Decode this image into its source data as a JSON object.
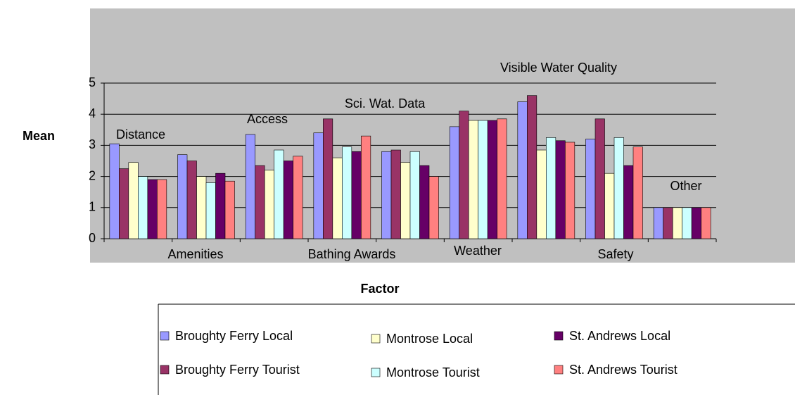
{
  "chart_data": {
    "type": "bar",
    "x_label": "Factor",
    "y_label": "Mean",
    "categories": [
      "Distance",
      "Amenities",
      "Access",
      "Bathing Awards",
      "Sci. Wat. Data",
      "Weather",
      "Visible Water Quality",
      "Safety",
      "Other"
    ],
    "series": [
      {
        "name": "Broughty Ferry Local",
        "color": "#9999ff",
        "values": [
          3.05,
          2.7,
          3.35,
          3.4,
          2.8,
          3.6,
          4.4,
          3.2,
          1
        ]
      },
      {
        "name": "Broughty Ferry Tourist",
        "color": "#993366",
        "values": [
          2.25,
          2.5,
          2.35,
          3.85,
          2.85,
          4.1,
          4.6,
          3.85,
          1
        ]
      },
      {
        "name": "Montrose Local",
        "color": "#ffffcc",
        "values": [
          2.45,
          2.0,
          2.2,
          2.6,
          2.45,
          3.8,
          2.85,
          2.1,
          1
        ]
      },
      {
        "name": "Montrose Tourist",
        "color": "#ccffff",
        "values": [
          2.0,
          1.8,
          2.85,
          2.95,
          2.8,
          3.8,
          3.25,
          3.25,
          1
        ]
      },
      {
        "name": "St. Andrews Local",
        "color": "#660066",
        "values": [
          1.9,
          2.1,
          2.5,
          2.8,
          2.35,
          3.8,
          3.15,
          2.35,
          1
        ]
      },
      {
        "name": "St. Andrews Tourist",
        "color": "#ff8080",
        "values": [
          1.9,
          1.85,
          2.65,
          3.3,
          2.0,
          3.85,
          3.1,
          2.95,
          1
        ]
      }
    ],
    "ylim": [
      0,
      5
    ],
    "yticks": [
      0,
      1,
      2,
      3,
      4,
      5
    ],
    "grid": true
  }
}
